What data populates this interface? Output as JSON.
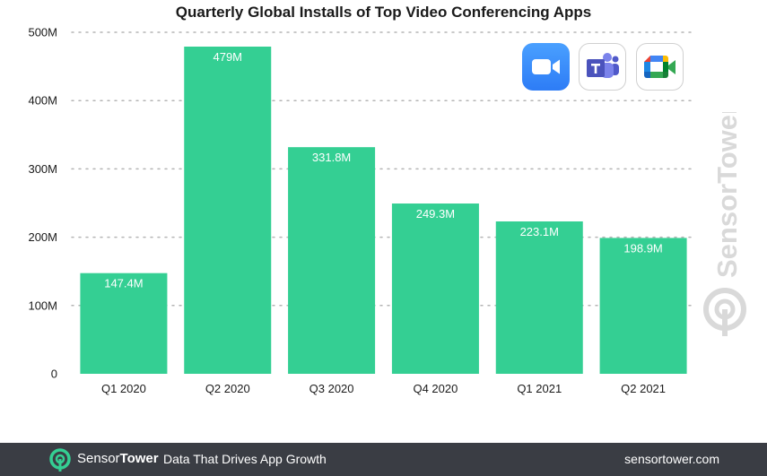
{
  "chart_data": {
    "type": "bar",
    "title": "Quarterly Global Installs of Top Video Conferencing Apps",
    "categories": [
      "Q1 2020",
      "Q2 2020",
      "Q3 2020",
      "Q4 2020",
      "Q1 2021",
      "Q2 2021"
    ],
    "values": [
      147.4,
      479,
      331.8,
      249.3,
      223.1,
      198.9
    ],
    "value_labels": [
      "147.4M",
      "479M",
      "331.8M",
      "249.3M",
      "223.1M",
      "198.9M"
    ],
    "ylim": [
      0,
      500
    ],
    "yticks": [
      0,
      100,
      200,
      300,
      400,
      500
    ],
    "ytick_labels": [
      "0",
      "100M",
      "200M",
      "300M",
      "400M",
      "500M"
    ],
    "xlabel": "",
    "ylabel": "",
    "grid": true,
    "bar_color": "#34cf93"
  },
  "app_icons": [
    {
      "name": "zoom-icon"
    },
    {
      "name": "teams-icon"
    },
    {
      "name": "google-meet-icon"
    }
  ],
  "watermark": {
    "text": "SensorTower",
    "color": "#d9d9d9"
  },
  "footer": {
    "brand_light": "Sensor",
    "brand_bold": "Tower",
    "tagline": "Data That Drives App Growth",
    "url": "sensortower.com",
    "background": "#3a3d44",
    "accent": "#34cf93"
  }
}
